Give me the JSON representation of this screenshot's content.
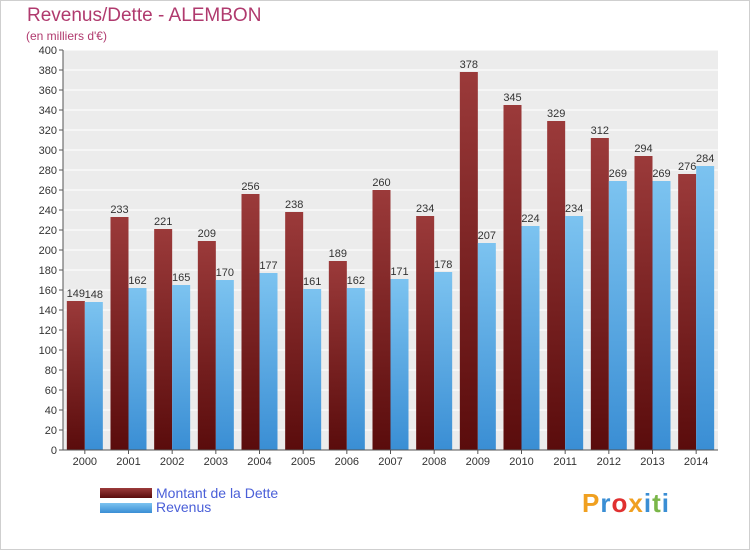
{
  "title": "Revenus/Dette - ALEMBON",
  "subtitle": "(en milliers d'€)",
  "legend": {
    "debt_label": "Montant de la Dette",
    "revenue_label": "Revenus"
  },
  "logo": {
    "text": "Proxiti",
    "colors": [
      "#f0a020",
      "#3a8ed4",
      "#e03030",
      "#f0a020",
      "#3a8ed4",
      "#7ab648",
      "#3a8ed4"
    ]
  },
  "colors": {
    "debt_top": "#9b3a3a",
    "debt_bottom": "#5a0c0c",
    "revenue_top": "#7cc3f0",
    "revenue_bottom": "#3a8ed4",
    "background": "#ececec",
    "title": "#b03a6e"
  },
  "chart_data": {
    "type": "bar",
    "categories": [
      "2000",
      "2001",
      "2002",
      "2003",
      "2004",
      "2005",
      "2006",
      "2007",
      "2008",
      "2009",
      "2010",
      "2011",
      "2012",
      "2013",
      "2014"
    ],
    "series": [
      {
        "name": "Montant de la Dette",
        "values": [
          149,
          233,
          221,
          209,
          256,
          238,
          189,
          260,
          234,
          378,
          345,
          329,
          312,
          294,
          276
        ]
      },
      {
        "name": "Revenus",
        "values": [
          148,
          162,
          165,
          170,
          177,
          161,
          162,
          171,
          178,
          207,
          224,
          234,
          269,
          269,
          284
        ]
      }
    ],
    "title": "Revenus/Dette - ALEMBON",
    "subtitle": "(en milliers d'€)",
    "ylim": [
      0,
      400
    ],
    "ytick_step": 20,
    "grid": true,
    "legend": "bottom-left"
  }
}
